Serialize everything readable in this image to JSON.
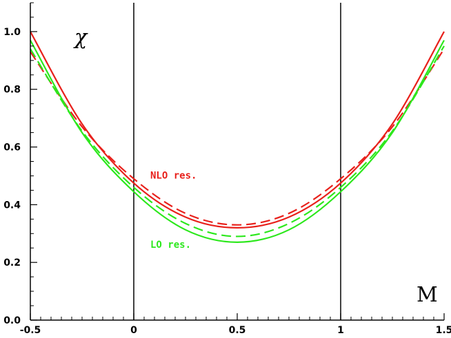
{
  "chart_data": {
    "type": "line",
    "xlabel": "M",
    "ylabel": "χ",
    "xlim": [
      -0.5,
      1.5
    ],
    "ylim": [
      0.0,
      1.1
    ],
    "x_ticks": [
      -0.5,
      0,
      0.5,
      1,
      1.5
    ],
    "x_tick_labels": [
      "-0.5",
      "0",
      "0.5",
      "1",
      "1.5"
    ],
    "y_ticks": [
      0.0,
      0.2,
      0.4,
      0.6,
      0.8,
      1.0
    ],
    "y_tick_labels": [
      "0.0",
      "0.2",
      "0.4",
      "0.6",
      "0.8",
      "1.0"
    ],
    "vertical_lines_x": [
      0,
      1
    ],
    "grid": false,
    "legend": "inline labels",
    "annotations": [
      {
        "text": "NLO res.",
        "x": 0.08,
        "y": 0.49,
        "color": "#e8211c"
      },
      {
        "text": "LO res.",
        "x": 0.08,
        "y": 0.25,
        "color": "#2ce81c"
      }
    ],
    "series": [
      {
        "style": "solid",
        "color": "#e8211c",
        "x": [
          -0.5,
          -0.25,
          0,
          0.25,
          0.5,
          0.75,
          1,
          1.25,
          1.5
        ],
        "y": [
          1.0,
          0.68,
          0.475,
          0.357,
          0.32,
          0.357,
          0.475,
          0.68,
          1.0
        ]
      },
      {
        "style": "dashed",
        "color": "#e8211c",
        "x": [
          -0.5,
          -0.25,
          0,
          0.25,
          0.5,
          0.75,
          1,
          1.25,
          1.5
        ],
        "y": [
          0.93,
          0.67,
          0.49,
          0.37,
          0.33,
          0.37,
          0.49,
          0.67,
          0.94
        ]
      },
      {
        "style": "solid",
        "color": "#2ce81c",
        "x": [
          -0.5,
          -0.25,
          0,
          0.25,
          0.5,
          0.75,
          1,
          1.25,
          1.5
        ],
        "y": [
          0.97,
          0.65,
          0.445,
          0.313,
          0.27,
          0.313,
          0.445,
          0.65,
          0.97
        ]
      },
      {
        "style": "dashed",
        "color": "#2ce81c",
        "x": [
          -0.5,
          -0.25,
          0,
          0.25,
          0.5,
          0.75,
          1,
          1.25,
          1.5
        ],
        "y": [
          0.94,
          0.655,
          0.46,
          0.335,
          0.29,
          0.335,
          0.46,
          0.655,
          0.95
        ]
      }
    ]
  }
}
